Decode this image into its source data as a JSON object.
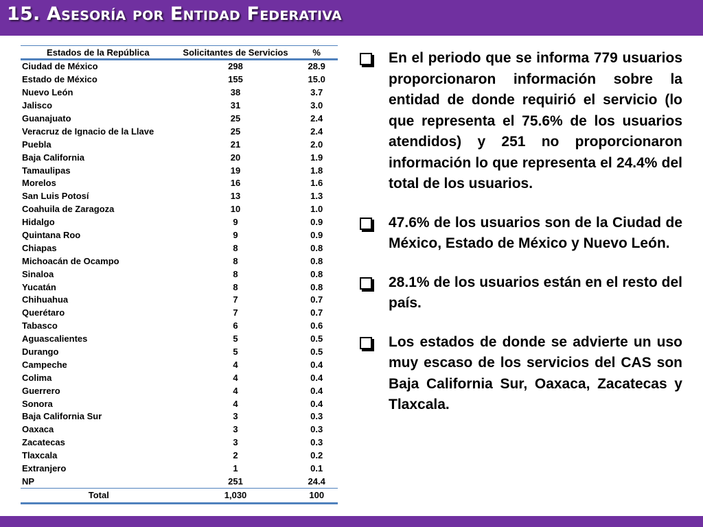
{
  "title": "15. Asesoría por Entidad Federativa",
  "table": {
    "headers": [
      "Estados de la República",
      "Solicitantes de Servicios",
      "%"
    ],
    "rows": [
      [
        "Ciudad de México",
        "298",
        "28.9"
      ],
      [
        "Estado de México",
        "155",
        "15.0"
      ],
      [
        "Nuevo León",
        "38",
        "3.7"
      ],
      [
        "Jalisco",
        "31",
        "3.0"
      ],
      [
        "Guanajuato",
        "25",
        "2.4"
      ],
      [
        "Veracruz de Ignacio de la Llave",
        "25",
        "2.4"
      ],
      [
        "Puebla",
        "21",
        "2.0"
      ],
      [
        "Baja California",
        "20",
        "1.9"
      ],
      [
        "Tamaulipas",
        "19",
        "1.8"
      ],
      [
        "Morelos",
        "16",
        "1.6"
      ],
      [
        "San Luis Potosí",
        "13",
        "1.3"
      ],
      [
        "Coahuila de Zaragoza",
        "10",
        "1.0"
      ],
      [
        "Hidalgo",
        "9",
        "0.9"
      ],
      [
        "Quintana Roo",
        "9",
        "0.9"
      ],
      [
        "Chiapas",
        "8",
        "0.8"
      ],
      [
        "Michoacán de Ocampo",
        "8",
        "0.8"
      ],
      [
        "Sinaloa",
        "8",
        "0.8"
      ],
      [
        "Yucatán",
        "8",
        "0.8"
      ],
      [
        "Chihuahua",
        "7",
        "0.7"
      ],
      [
        "Querétaro",
        "7",
        "0.7"
      ],
      [
        "Tabasco",
        "6",
        "0.6"
      ],
      [
        "Aguascalientes",
        "5",
        "0.5"
      ],
      [
        "Durango",
        "5",
        "0.5"
      ],
      [
        "Campeche",
        "4",
        "0.4"
      ],
      [
        "Colima",
        "4",
        "0.4"
      ],
      [
        "Guerrero",
        "4",
        "0.4"
      ],
      [
        "Sonora",
        "4",
        "0.4"
      ],
      [
        "Baja California Sur",
        "3",
        "0.3"
      ],
      [
        "Oaxaca",
        "3",
        "0.3"
      ],
      [
        "Zacatecas",
        "3",
        "0.3"
      ],
      [
        "Tlaxcala",
        "2",
        "0.2"
      ],
      [
        "Extranjero",
        "1",
        "0.1"
      ],
      [
        "NP",
        "251",
        "24.4"
      ]
    ],
    "total": [
      "Total",
      "1,030",
      "100"
    ]
  },
  "bullets": [
    "En el periodo que se informa 779 usuarios proporcionaron información sobre la entidad de donde requirió el servicio (lo que representa el 75.6% de los usuarios atendidos) y 251 no proporcionaron información lo que representa el 24.4% del total de los usuarios.",
    "47.6% de los usuarios son de la Ciudad de México, Estado de México y Nuevo León.",
    "28.1% de los usuarios están en el resto del país.",
    "Los estados de donde se advierte un uso muy escaso de los servicios del CAS son Baja California Sur, Oaxaca,  Zacatecas y Tlaxcala."
  ],
  "colors": {
    "accent": "#7030a0",
    "table_rule": "#4f81bd"
  },
  "icons": {
    "bullet": "checkbox-bullet-icon"
  }
}
